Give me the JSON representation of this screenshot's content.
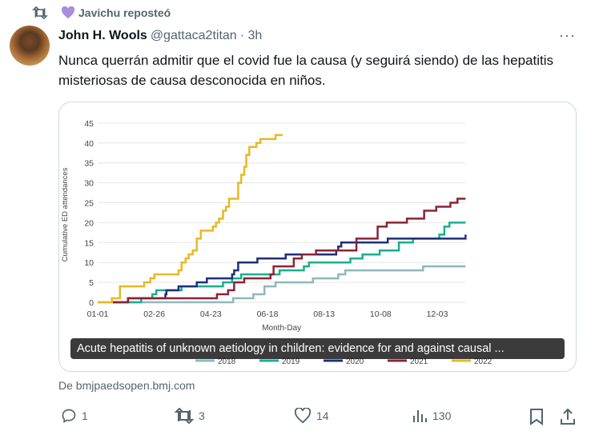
{
  "repost": {
    "label": "Javichu reposteó",
    "icon": "repost-icon",
    "heart_color": "#a98ee0"
  },
  "tweet": {
    "name": "John H. Wools",
    "handle": "@gattaca2titan",
    "time": "· 3h",
    "text": "Nunca querrán admitir que el covid fue la causa (y seguirá siendo) de las hepatitis misteriosas de causa desconocida en niños.",
    "more": "···",
    "card_caption": "Acute hepatitis of unknown aetiology in children: evidence for and against causal ...",
    "source": "De bmjpaedsopen.bmj.com"
  },
  "actions": {
    "replies": "1",
    "reposts": "3",
    "likes": "14",
    "views": "130"
  },
  "chart_data": {
    "type": "line",
    "xlabel": "Month-Day",
    "ylabel": "Cumulative ED attendances",
    "x_ticks": [
      "01-01",
      "02-26",
      "04-23",
      "06-18",
      "08-13",
      "10-08",
      "12-03"
    ],
    "y_ticks": [
      0,
      5,
      10,
      15,
      20,
      25,
      30,
      35,
      40,
      45
    ],
    "ylim": [
      0,
      45
    ],
    "grid": true,
    "step": true,
    "legend": "bottom",
    "series": [
      {
        "name": "2018",
        "color": "#8fb8bd",
        "points": [
          [
            0,
            0
          ],
          [
            134,
            1
          ],
          [
            154,
            2
          ],
          [
            165,
            4
          ],
          [
            176,
            5
          ],
          [
            213,
            6
          ],
          [
            238,
            7
          ],
          [
            245,
            8
          ],
          [
            322,
            9
          ],
          [
            364,
            9
          ]
        ]
      },
      {
        "name": "2019",
        "color": "#1aae8f",
        "points": [
          [
            31,
            0
          ],
          [
            43,
            1
          ],
          [
            54,
            2
          ],
          [
            58,
            3
          ],
          [
            83,
            4
          ],
          [
            124,
            5
          ],
          [
            133,
            6
          ],
          [
            142,
            7
          ],
          [
            180,
            8
          ],
          [
            204,
            9
          ],
          [
            209,
            10
          ],
          [
            250,
            11
          ],
          [
            262,
            12
          ],
          [
            279,
            13
          ],
          [
            298,
            15
          ],
          [
            312,
            16
          ],
          [
            338,
            17
          ],
          [
            343,
            19
          ],
          [
            348,
            20
          ],
          [
            364,
            20
          ]
        ]
      },
      {
        "name": "2020",
        "color": "#1f2f7a",
        "points": [
          [
            15,
            0
          ],
          [
            30,
            1
          ],
          [
            67,
            2
          ],
          [
            68,
            3
          ],
          [
            80,
            4
          ],
          [
            98,
            5
          ],
          [
            108,
            6
          ],
          [
            133,
            7
          ],
          [
            135,
            8
          ],
          [
            139,
            10
          ],
          [
            158,
            11
          ],
          [
            186,
            12
          ],
          [
            236,
            13
          ],
          [
            238,
            14
          ],
          [
            241,
            15
          ],
          [
            287,
            16
          ],
          [
            363,
            16
          ],
          [
            364,
            17
          ]
        ]
      },
      {
        "name": "2021",
        "color": "#8a2435",
        "points": [
          [
            15,
            0
          ],
          [
            30,
            1
          ],
          [
            118,
            2
          ],
          [
            129,
            3
          ],
          [
            135,
            5
          ],
          [
            145,
            6
          ],
          [
            171,
            7
          ],
          [
            174,
            9
          ],
          [
            194,
            11
          ],
          [
            202,
            12
          ],
          [
            216,
            13
          ],
          [
            256,
            16
          ],
          [
            277,
            19
          ],
          [
            286,
            20
          ],
          [
            306,
            21
          ],
          [
            323,
            23
          ],
          [
            335,
            24
          ],
          [
            349,
            25
          ],
          [
            356,
            26
          ],
          [
            364,
            26
          ]
        ]
      },
      {
        "name": "2022",
        "color": "#e8b923",
        "points": [
          [
            0,
            0
          ],
          [
            14,
            1
          ],
          [
            22,
            4
          ],
          [
            46,
            5
          ],
          [
            52,
            6
          ],
          [
            56,
            7
          ],
          [
            80,
            8
          ],
          [
            83,
            10
          ],
          [
            87,
            11
          ],
          [
            90,
            12
          ],
          [
            94,
            13
          ],
          [
            98,
            16
          ],
          [
            102,
            18
          ],
          [
            114,
            19
          ],
          [
            117,
            20
          ],
          [
            120,
            21
          ],
          [
            124,
            23
          ],
          [
            127,
            24
          ],
          [
            130,
            26
          ],
          [
            139,
            30
          ],
          [
            142,
            32
          ],
          [
            145,
            34
          ],
          [
            147,
            37
          ],
          [
            150,
            39
          ],
          [
            157,
            40
          ],
          [
            161,
            41
          ],
          [
            176,
            42
          ],
          [
            183,
            42
          ]
        ]
      }
    ]
  }
}
